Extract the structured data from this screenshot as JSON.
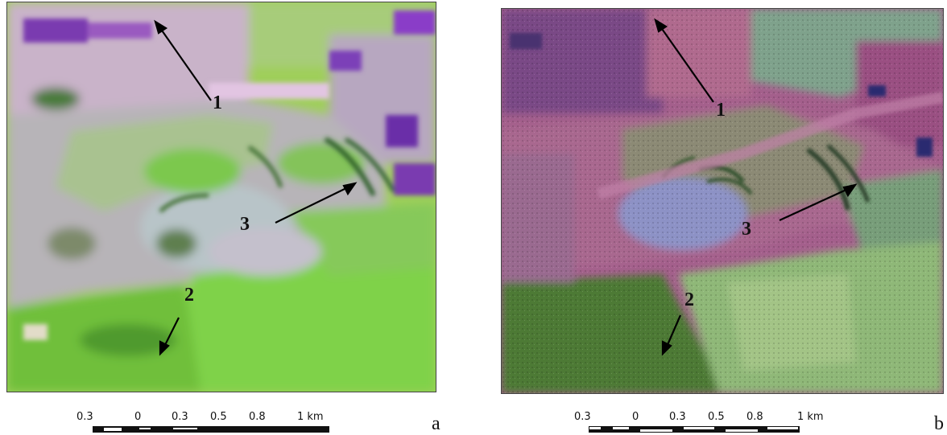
{
  "panels": [
    {
      "label": "a",
      "callouts": [
        "1",
        "2",
        "3"
      ],
      "scalebar": {
        "ticks": [
          "0.3",
          "0",
          "0.3",
          "0.5",
          "0.8",
          "1 km"
        ]
      },
      "colors": {
        "dominant": "#8fcf4a",
        "secondary": "#c8a8c8",
        "accent": "#7a3bb0"
      }
    },
    {
      "label": "b",
      "callouts": [
        "1",
        "2",
        "3"
      ],
      "scalebar": {
        "ticks": [
          "0.3",
          "0",
          "0.3",
          "0.5",
          "0.8",
          "1 km"
        ]
      },
      "colors": {
        "dominant": "#a0608a",
        "secondary": "#6f9a5a",
        "accent": "#8a8ec8"
      }
    }
  ]
}
